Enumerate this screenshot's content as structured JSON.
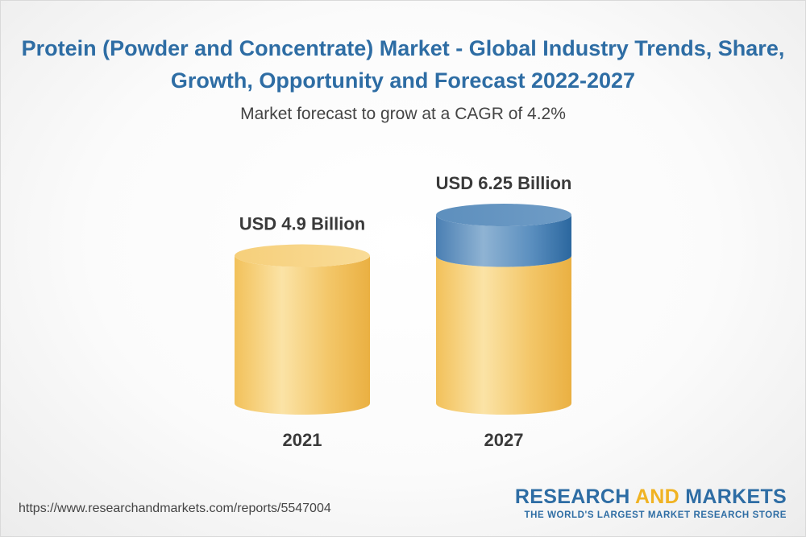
{
  "title": "Protein (Powder and Concentrate) Market - Global Industry Trends, Share, Growth, Opportunity and Forecast 2022-2027",
  "subtitle": "Market forecast to grow at a CAGR of 4.2%",
  "url": "https://www.researchandmarkets.com/reports/5547004",
  "brand": {
    "research": "RESEARCH",
    "and": "AND",
    "markets": "MARKETS",
    "tagline": "THE WORLD'S LARGEST MARKET RESEARCH STORE"
  },
  "colors": {
    "title": "#2e6da4",
    "gold": "#f3c768",
    "gold_dark": "#e8ad3a",
    "blue": "#4f86b9",
    "blue_dark": "#2e6da4"
  },
  "chart_data": {
    "type": "bar",
    "categories": [
      "2021",
      "2027"
    ],
    "values": [
      4.9,
      6.25
    ],
    "unit": "USD Billion",
    "data_labels": [
      "USD 4.9 Billion",
      "USD 6.25 Billion"
    ]
  }
}
